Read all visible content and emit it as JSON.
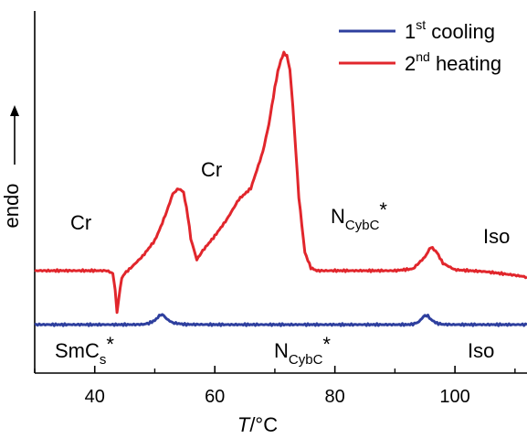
{
  "chart_data": {
    "type": "line",
    "xlabel": "T/°C",
    "xlabel_italic_part": "T",
    "xlabel_rest": "/°C",
    "ylabel": "endo",
    "xlim": [
      30,
      112
    ],
    "xticks": [
      40,
      60,
      80,
      100
    ],
    "xtick_labels": [
      "40",
      "60",
      "80",
      "100"
    ],
    "legend_position": "top-right",
    "series": [
      {
        "name": "1st cooling",
        "name_main": "1",
        "name_sup": "st",
        "name_rest": " cooling",
        "color": "#2e3f9e",
        "x": [
          30,
          40,
          46,
          48,
          49,
          50,
          50.5,
          51,
          51.5,
          52,
          53,
          55,
          60,
          70,
          80,
          90,
          92,
          93,
          94,
          94.5,
          95,
          95.5,
          96,
          97,
          98,
          100,
          105,
          112
        ],
        "y": [
          0,
          0,
          0,
          0.05,
          0.3,
          0.9,
          1.6,
          2.2,
          2.0,
          1.2,
          0.4,
          0.05,
          0,
          0,
          0,
          0,
          0,
          0.1,
          0.6,
          1.4,
          2.0,
          1.9,
          1.1,
          0.3,
          0.05,
          0,
          0,
          0
        ]
      },
      {
        "name": "2nd heating",
        "name_main": "2",
        "name_sup": "nd",
        "name_rest": " heating",
        "color": "#e1262c",
        "x": [
          30,
          35,
          40,
          42,
          43,
          43.4,
          43.7,
          44,
          44.5,
          45,
          46,
          48,
          50,
          51,
          52,
          53,
          54,
          54.8,
          55.5,
          56,
          57,
          58,
          60,
          62,
          64,
          66,
          68,
          69,
          70,
          70.5,
          71,
          71.5,
          72,
          72.5,
          73,
          73.5,
          74,
          75,
          76,
          77,
          80,
          90,
          93,
          95,
          96,
          97,
          98,
          100,
          105,
          110,
          112
        ],
        "y": [
          0,
          0,
          0,
          0,
          -0.3,
          -2.2,
          -4.6,
          -3.0,
          -0.8,
          -0.3,
          0.3,
          1.6,
          3.3,
          4.8,
          6.5,
          8.4,
          9.0,
          8.6,
          6.0,
          3.5,
          1.2,
          2.2,
          3.8,
          5.6,
          7.8,
          9.0,
          13.0,
          16.0,
          20.0,
          21.8,
          23.0,
          23.8,
          23.5,
          22.0,
          18.0,
          13.0,
          8.0,
          2.0,
          0.3,
          0,
          0,
          0,
          0.2,
          1.5,
          2.6,
          2.0,
          0.8,
          0.1,
          -0.1,
          -0.5,
          -0.7
        ]
      }
    ]
  },
  "annotations": {
    "cr_left": "Cr",
    "cr_mid": "Cr",
    "ncybc_top_main": "N",
    "ncybc_top_sub": "CybC",
    "ncybc_top_star": "*",
    "iso_top": "Iso",
    "smcs_main": "SmC",
    "smcs_sub": "s",
    "smcs_star": "*",
    "ncybc_bot_main": "N",
    "ncybc_bot_sub": "CybC",
    "ncybc_bot_star": "*",
    "iso_bot": "Iso"
  }
}
